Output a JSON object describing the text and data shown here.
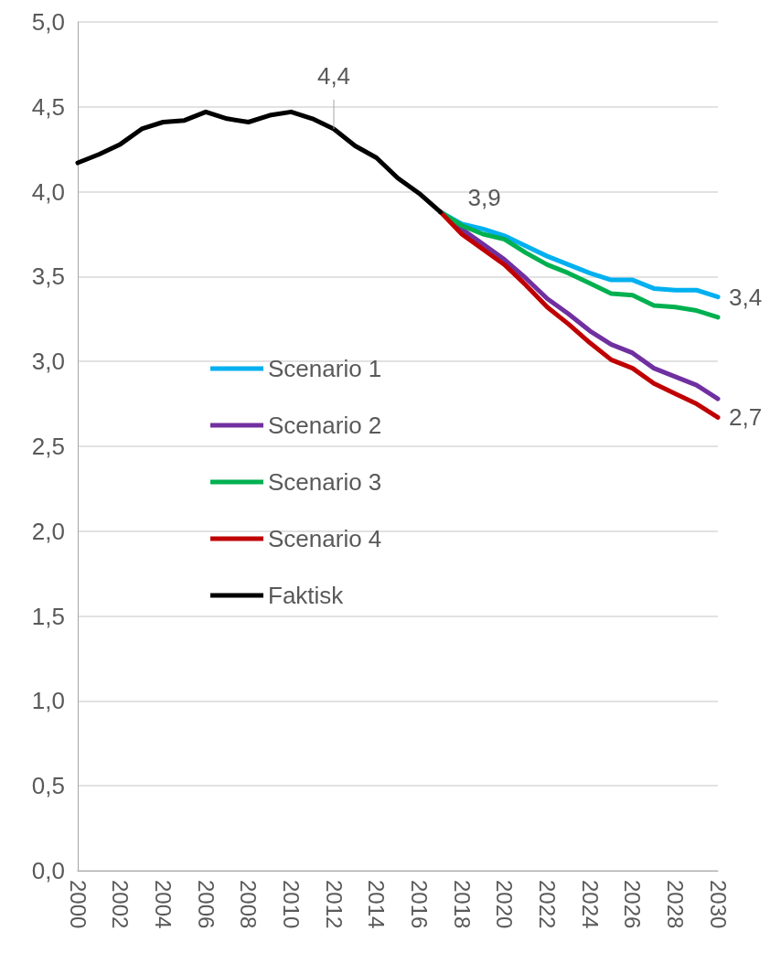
{
  "chart_data": {
    "type": "line",
    "categories": [
      "2000",
      null,
      "2002",
      null,
      "2004",
      null,
      "2006",
      null,
      "2008",
      null,
      "2010",
      null,
      "2012",
      null,
      "2014",
      null,
      "2016",
      null,
      "2018",
      null,
      "2020",
      null,
      "2022",
      null,
      "2024",
      null,
      "2026",
      null,
      "2028",
      null,
      "2030"
    ],
    "series": [
      {
        "name": "Scenario 1",
        "color": "#00b0f0",
        "values": [
          null,
          null,
          null,
          null,
          null,
          null,
          null,
          null,
          null,
          null,
          null,
          null,
          null,
          null,
          null,
          null,
          null,
          3.88,
          3.81,
          3.78,
          3.74,
          3.68,
          3.62,
          3.57,
          3.52,
          3.48,
          3.48,
          3.43,
          3.42,
          3.42,
          3.38
        ],
        "value_labels": [
          null,
          null,
          null,
          null,
          null,
          null,
          null,
          null,
          null,
          null,
          null,
          null,
          null,
          null,
          null,
          null,
          null,
          "3,9",
          null,
          null,
          null,
          null,
          null,
          null,
          null,
          null,
          null,
          null,
          null,
          null,
          "3,4"
        ]
      },
      {
        "name": "Scenario 2",
        "color": "#7030a0",
        "values": [
          null,
          null,
          null,
          null,
          null,
          null,
          null,
          null,
          null,
          null,
          null,
          null,
          null,
          null,
          null,
          null,
          null,
          3.88,
          3.78,
          3.69,
          3.6,
          3.49,
          3.37,
          3.28,
          3.18,
          3.1,
          3.05,
          2.96,
          2.91,
          2.86,
          2.78
        ]
      },
      {
        "name": "Scenario 3",
        "color": "#00b050",
        "values": [
          null,
          null,
          null,
          null,
          null,
          null,
          null,
          null,
          null,
          null,
          null,
          null,
          null,
          null,
          null,
          null,
          null,
          3.88,
          3.8,
          3.75,
          3.72,
          3.64,
          3.57,
          3.52,
          3.46,
          3.4,
          3.39,
          3.33,
          3.32,
          3.3,
          3.26
        ]
      },
      {
        "name": "Scenario 4",
        "color": "#c00000",
        "values": [
          null,
          null,
          null,
          null,
          null,
          null,
          null,
          null,
          null,
          null,
          null,
          null,
          null,
          null,
          null,
          null,
          null,
          3.88,
          3.75,
          3.66,
          3.57,
          3.45,
          3.32,
          3.22,
          3.11,
          3.01,
          2.96,
          2.87,
          2.81,
          2.75,
          2.67
        ],
        "value_labels": [
          null,
          null,
          null,
          null,
          null,
          null,
          null,
          null,
          null,
          null,
          null,
          null,
          null,
          null,
          null,
          null,
          null,
          null,
          null,
          null,
          null,
          null,
          null,
          null,
          null,
          null,
          null,
          null,
          null,
          null,
          "2,7"
        ]
      },
      {
        "name": "Faktisk",
        "color": "#000000",
        "values": [
          4.17,
          4.22,
          4.28,
          4.37,
          4.41,
          4.42,
          4.47,
          4.43,
          4.41,
          4.45,
          4.47,
          4.43,
          4.37,
          4.27,
          4.2,
          4.08,
          3.99,
          3.88,
          null,
          null,
          null,
          null,
          null,
          null,
          null,
          null,
          null,
          null,
          null,
          null,
          null
        ],
        "value_labels": [
          null,
          null,
          null,
          null,
          null,
          null,
          null,
          null,
          null,
          null,
          null,
          null,
          "4,4",
          null,
          null,
          null,
          null,
          null,
          null,
          null,
          null,
          null,
          null,
          null,
          null,
          null,
          null,
          null,
          null,
          null,
          null
        ]
      }
    ],
    "ylim": [
      0,
      5
    ],
    "yticks": [
      {
        "value": 0,
        "label": "0,0"
      },
      {
        "value": 0.5,
        "label": "0,5"
      },
      {
        "value": 1,
        "label": "1,0"
      },
      {
        "value": 1.5,
        "label": "1,5"
      },
      {
        "value": 2,
        "label": "2,0"
      },
      {
        "value": 2.5,
        "label": "2,5"
      },
      {
        "value": 3,
        "label": "3,0"
      },
      {
        "value": 3.5,
        "label": "3,5"
      },
      {
        "value": 4,
        "label": "4,0"
      },
      {
        "value": 4.5,
        "label": "4,5"
      },
      {
        "value": 5,
        "label": "5,0"
      }
    ],
    "grid": "y",
    "legend": "center",
    "line_style": "solid"
  }
}
